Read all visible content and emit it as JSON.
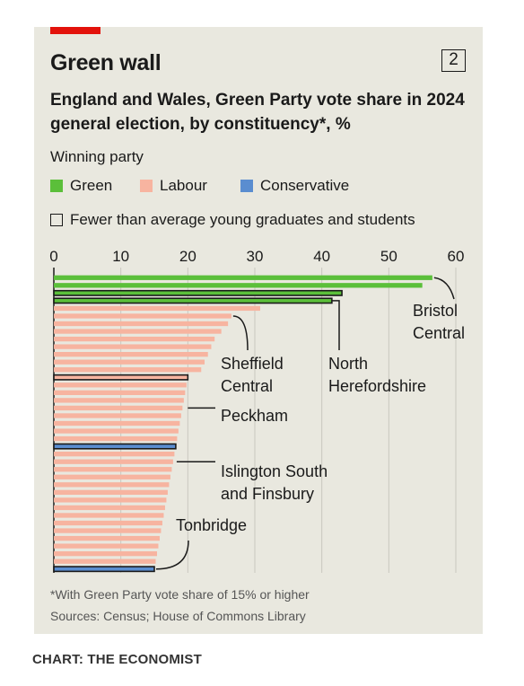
{
  "header": {
    "title": "Green wall",
    "badge": "2",
    "subtitle": "England and Wales, Green Party vote share in 2024 general election, by constituency*, %"
  },
  "legend": {
    "title": "Winning party",
    "items": [
      {
        "label": "Green",
        "color": "#5bbf3a"
      },
      {
        "label": "Labour",
        "color": "#f7b4a0"
      },
      {
        "label": "Conservative",
        "color": "#5a8dd0"
      }
    ],
    "outline_label": "Fewer than average young graduates and students"
  },
  "footer": {
    "footnote": "*With Green Party vote share of 15% or higher",
    "source": "Sources: Census; House of Commons Library",
    "credit": "CHART: THE ECONOMIST"
  },
  "colors": {
    "Green": "#5bbf3a",
    "Labour": "#f7b4a0",
    "Conservative": "#5a8dd0",
    "red_tag": "#e3120b",
    "card": "#e9e8df"
  },
  "chart_data": {
    "type": "bar",
    "orientation": "horizontal",
    "x_ticks": [
      0,
      10,
      20,
      30,
      40,
      50,
      60
    ],
    "xlim": [
      0,
      60
    ],
    "grid": true,
    "bars": [
      {
        "value": 56.5,
        "party": "Green",
        "outline": false
      },
      {
        "value": 55.0,
        "party": "Green",
        "outline": false
      },
      {
        "value": 43.0,
        "party": "Green",
        "outline": true
      },
      {
        "value": 41.5,
        "party": "Green",
        "outline": true
      },
      {
        "value": 30.8,
        "party": "Labour",
        "outline": false
      },
      {
        "value": 26.5,
        "party": "Labour",
        "outline": false
      },
      {
        "value": 26.0,
        "party": "Labour",
        "outline": false
      },
      {
        "value": 25.0,
        "party": "Labour",
        "outline": false
      },
      {
        "value": 24.0,
        "party": "Labour",
        "outline": false
      },
      {
        "value": 23.5,
        "party": "Labour",
        "outline": false
      },
      {
        "value": 23.0,
        "party": "Labour",
        "outline": false
      },
      {
        "value": 22.5,
        "party": "Labour",
        "outline": false
      },
      {
        "value": 22.0,
        "party": "Labour",
        "outline": false
      },
      {
        "value": 20.0,
        "party": "Labour",
        "outline": true
      },
      {
        "value": 19.8,
        "party": "Labour",
        "outline": false
      },
      {
        "value": 19.6,
        "party": "Labour",
        "outline": false
      },
      {
        "value": 19.4,
        "party": "Labour",
        "outline": false
      },
      {
        "value": 19.2,
        "party": "Labour",
        "outline": false
      },
      {
        "value": 19.0,
        "party": "Labour",
        "outline": false
      },
      {
        "value": 18.8,
        "party": "Labour",
        "outline": false
      },
      {
        "value": 18.6,
        "party": "Labour",
        "outline": false
      },
      {
        "value": 18.4,
        "party": "Labour",
        "outline": false
      },
      {
        "value": 18.2,
        "party": "Conservative",
        "outline": true
      },
      {
        "value": 18.0,
        "party": "Labour",
        "outline": false
      },
      {
        "value": 17.8,
        "party": "Labour",
        "outline": false
      },
      {
        "value": 17.6,
        "party": "Labour",
        "outline": false
      },
      {
        "value": 17.4,
        "party": "Labour",
        "outline": false
      },
      {
        "value": 17.2,
        "party": "Labour",
        "outline": false
      },
      {
        "value": 17.0,
        "party": "Labour",
        "outline": false
      },
      {
        "value": 16.8,
        "party": "Labour",
        "outline": false
      },
      {
        "value": 16.6,
        "party": "Labour",
        "outline": false
      },
      {
        "value": 16.4,
        "party": "Labour",
        "outline": false
      },
      {
        "value": 16.2,
        "party": "Labour",
        "outline": false
      },
      {
        "value": 16.0,
        "party": "Labour",
        "outline": false
      },
      {
        "value": 15.8,
        "party": "Labour",
        "outline": false
      },
      {
        "value": 15.6,
        "party": "Labour",
        "outline": false
      },
      {
        "value": 15.4,
        "party": "Labour",
        "outline": false
      },
      {
        "value": 15.2,
        "party": "Labour",
        "outline": false
      },
      {
        "value": 15.0,
        "party": "Conservative",
        "outline": true
      }
    ],
    "annotations": [
      {
        "label": "Bristol Central",
        "lines": [
          "Bristol",
          "Central"
        ],
        "bar_index": 0
      },
      {
        "label": "North Herefordshire",
        "lines": [
          "North",
          "Herefordshire"
        ],
        "bar_index": 3
      },
      {
        "label": "Sheffield Central",
        "lines": [
          "Sheffield",
          "Central"
        ],
        "bar_index": 5
      },
      {
        "label": "Peckham",
        "lines": [
          "Peckham"
        ],
        "bar_index": 17
      },
      {
        "label": "Islington South and Finsbury",
        "lines": [
          "Islington South",
          "and Finsbury"
        ],
        "bar_index": 24
      },
      {
        "label": "Tonbridge",
        "lines": [
          "Tonbridge"
        ],
        "bar_index": 38
      }
    ]
  }
}
